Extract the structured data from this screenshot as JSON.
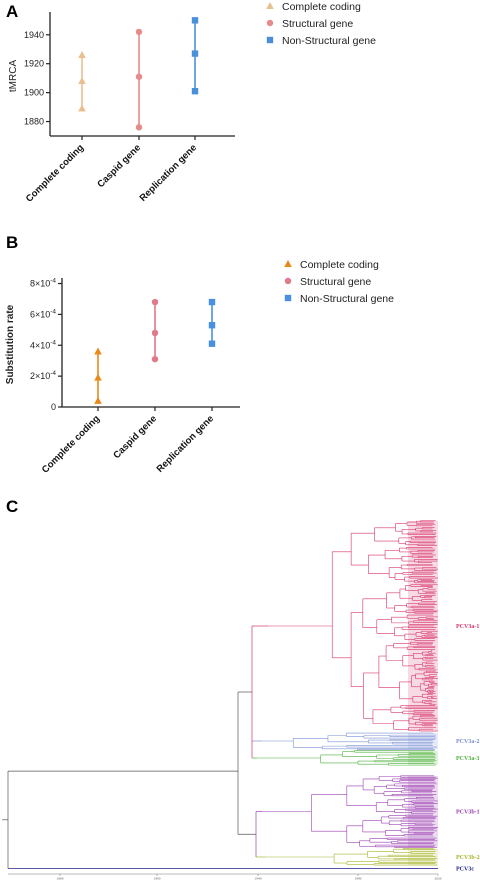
{
  "panels": {
    "a": {
      "letter": "A",
      "chart_data": {
        "type": "scatter",
        "ylabel": "tMRCA",
        "ylim": [
          1870,
          1953
        ],
        "yticks": [
          1880,
          1900,
          1920,
          1940
        ],
        "ytick_labels": [
          "1880",
          "1900",
          "1920",
          "1940"
        ],
        "categories": [
          "Complete coding",
          "Caspid gene",
          "Replication gene"
        ],
        "series": [
          {
            "name": "Complete coding",
            "color": "#e8c08f",
            "marker": "triangle",
            "category": 0,
            "low": 1889,
            "mid": 1908,
            "high": 1926
          },
          {
            "name": "Structural gene",
            "color": "#e88a8a",
            "marker": "circle",
            "category": 1,
            "low": 1876,
            "mid": 1911,
            "high": 1942
          },
          {
            "name": "Non-Structural gene",
            "color": "#4a90d9",
            "marker": "square",
            "category": 2,
            "low": 1901,
            "mid": 1927,
            "high": 1950
          }
        ],
        "legend_position": "top-right"
      }
    },
    "b": {
      "letter": "B",
      "chart_data": {
        "type": "scatter",
        "ylabel": "Substitution rate",
        "ylim": [
          0,
          0.00081
        ],
        "yticks": [
          0,
          0.0002,
          0.0004,
          0.0006,
          0.0008
        ],
        "ytick_labels": [
          {
            "base": "0",
            "exp": ""
          },
          {
            "base": "2×10",
            "exp": "-4"
          },
          {
            "base": "4×10",
            "exp": "-4"
          },
          {
            "base": "6×10",
            "exp": "-4"
          },
          {
            "base": "8×10",
            "exp": "-4"
          }
        ],
        "categories": [
          "Complete coding",
          "Caspid gene",
          "Replication gene"
        ],
        "series": [
          {
            "name": "Complete coding",
            "color": "#e8891a",
            "marker": "triangle",
            "category": 0,
            "low": 4e-05,
            "mid": 0.00019,
            "high": 0.00036
          },
          {
            "name": "Structural gene",
            "color": "#e07a8a",
            "marker": "circle",
            "category": 1,
            "low": 0.00031,
            "mid": 0.00048,
            "high": 0.00068
          },
          {
            "name": "Non-Structural gene",
            "color": "#4a90e2",
            "marker": "square",
            "category": 2,
            "low": 0.00041,
            "mid": 0.00053,
            "high": 0.00068
          }
        ],
        "legend_position": "top-right"
      }
    },
    "c": {
      "letter": "C",
      "tree": {
        "clades": [
          {
            "label": "PCV3a-1",
            "color": "#d6336c",
            "leaves": 60
          },
          {
            "label": "PCV3a-2",
            "color": "#7b8fd6",
            "leaves": 8
          },
          {
            "label": "PCV3a-3",
            "color": "#4caf3a",
            "leaves": 10
          },
          {
            "label": "PCV3b-1",
            "color": "#9b3fb0",
            "leaves": 34
          },
          {
            "label": "PCV3b-2",
            "color": "#a8b52a",
            "leaves": 10
          },
          {
            "label": "PCV3c",
            "color": "#1f1f8f",
            "leaves": 1
          }
        ],
        "time_ticks": [
          "1860",
          "1900",
          "1940",
          "1980",
          "2020"
        ],
        "backbone_color": "#555555"
      }
    }
  }
}
